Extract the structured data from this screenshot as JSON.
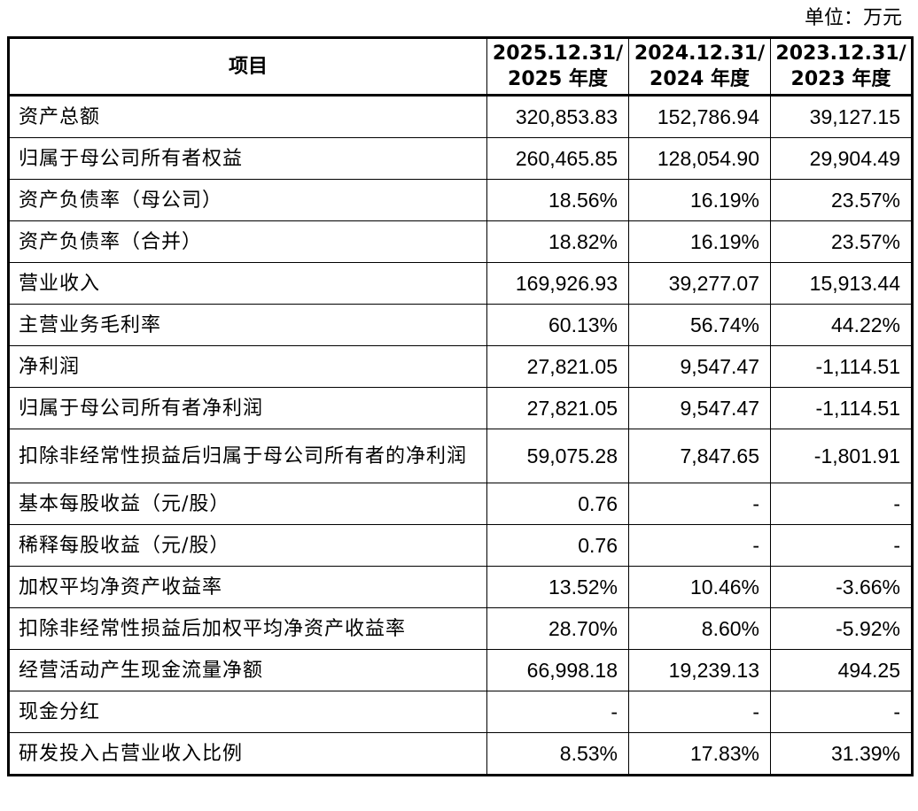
{
  "unit_label": "单位：万元",
  "table": {
    "headers": [
      {
        "line1": "项目",
        "line2": ""
      },
      {
        "line1": "2025.12.31/",
        "line2": "2025 年度"
      },
      {
        "line1": "2024.12.31/",
        "line2": "2024 年度"
      },
      {
        "line1": "2023.12.31/",
        "line2": "2023 年度"
      }
    ],
    "rows": [
      {
        "label": "资产总额",
        "values": [
          "320,853.83",
          "152,786.94",
          "39,127.15"
        ]
      },
      {
        "label": "归属于母公司所有者权益",
        "values": [
          "260,465.85",
          "128,054.90",
          "29,904.49"
        ]
      },
      {
        "label": "资产负债率（母公司）",
        "values": [
          "18.56%",
          "16.19%",
          "23.57%"
        ]
      },
      {
        "label": "资产负债率（合并）",
        "values": [
          "18.82%",
          "16.19%",
          "23.57%"
        ]
      },
      {
        "label": "营业收入",
        "values": [
          "169,926.93",
          "39,277.07",
          "15,913.44"
        ]
      },
      {
        "label": "主营业务毛利率",
        "values": [
          "60.13%",
          "56.74%",
          "44.22%"
        ]
      },
      {
        "label": "净利润",
        "values": [
          "27,821.05",
          "9,547.47",
          "-1,114.51"
        ]
      },
      {
        "label": "归属于母公司所有者净利润",
        "values": [
          "27,821.05",
          "9,547.47",
          "-1,114.51"
        ]
      },
      {
        "label": "扣除非经常性损益后归属于母公司所有者的净利润",
        "values": [
          "59,075.28",
          "7,847.65",
          "-1,801.91"
        ]
      },
      {
        "label": "基本每股收益（元/股）",
        "values": [
          "0.76",
          "-",
          "-"
        ]
      },
      {
        "label": "稀释每股收益（元/股）",
        "values": [
          "0.76",
          "-",
          "-"
        ]
      },
      {
        "label": "加权平均净资产收益率",
        "values": [
          "13.52%",
          "10.46%",
          "-3.66%"
        ]
      },
      {
        "label": "扣除非经常性损益后加权平均净资产收益率",
        "values": [
          "28.70%",
          "8.60%",
          "-5.92%"
        ]
      },
      {
        "label": "经营活动产生现金流量净额",
        "values": [
          "66,998.18",
          "19,239.13",
          "494.25"
        ]
      },
      {
        "label": "现金分红",
        "values": [
          "-",
          "-",
          "-"
        ]
      },
      {
        "label": "研发投入占营业收入比例",
        "values": [
          "8.53%",
          "17.83%",
          "31.39%"
        ]
      }
    ]
  }
}
